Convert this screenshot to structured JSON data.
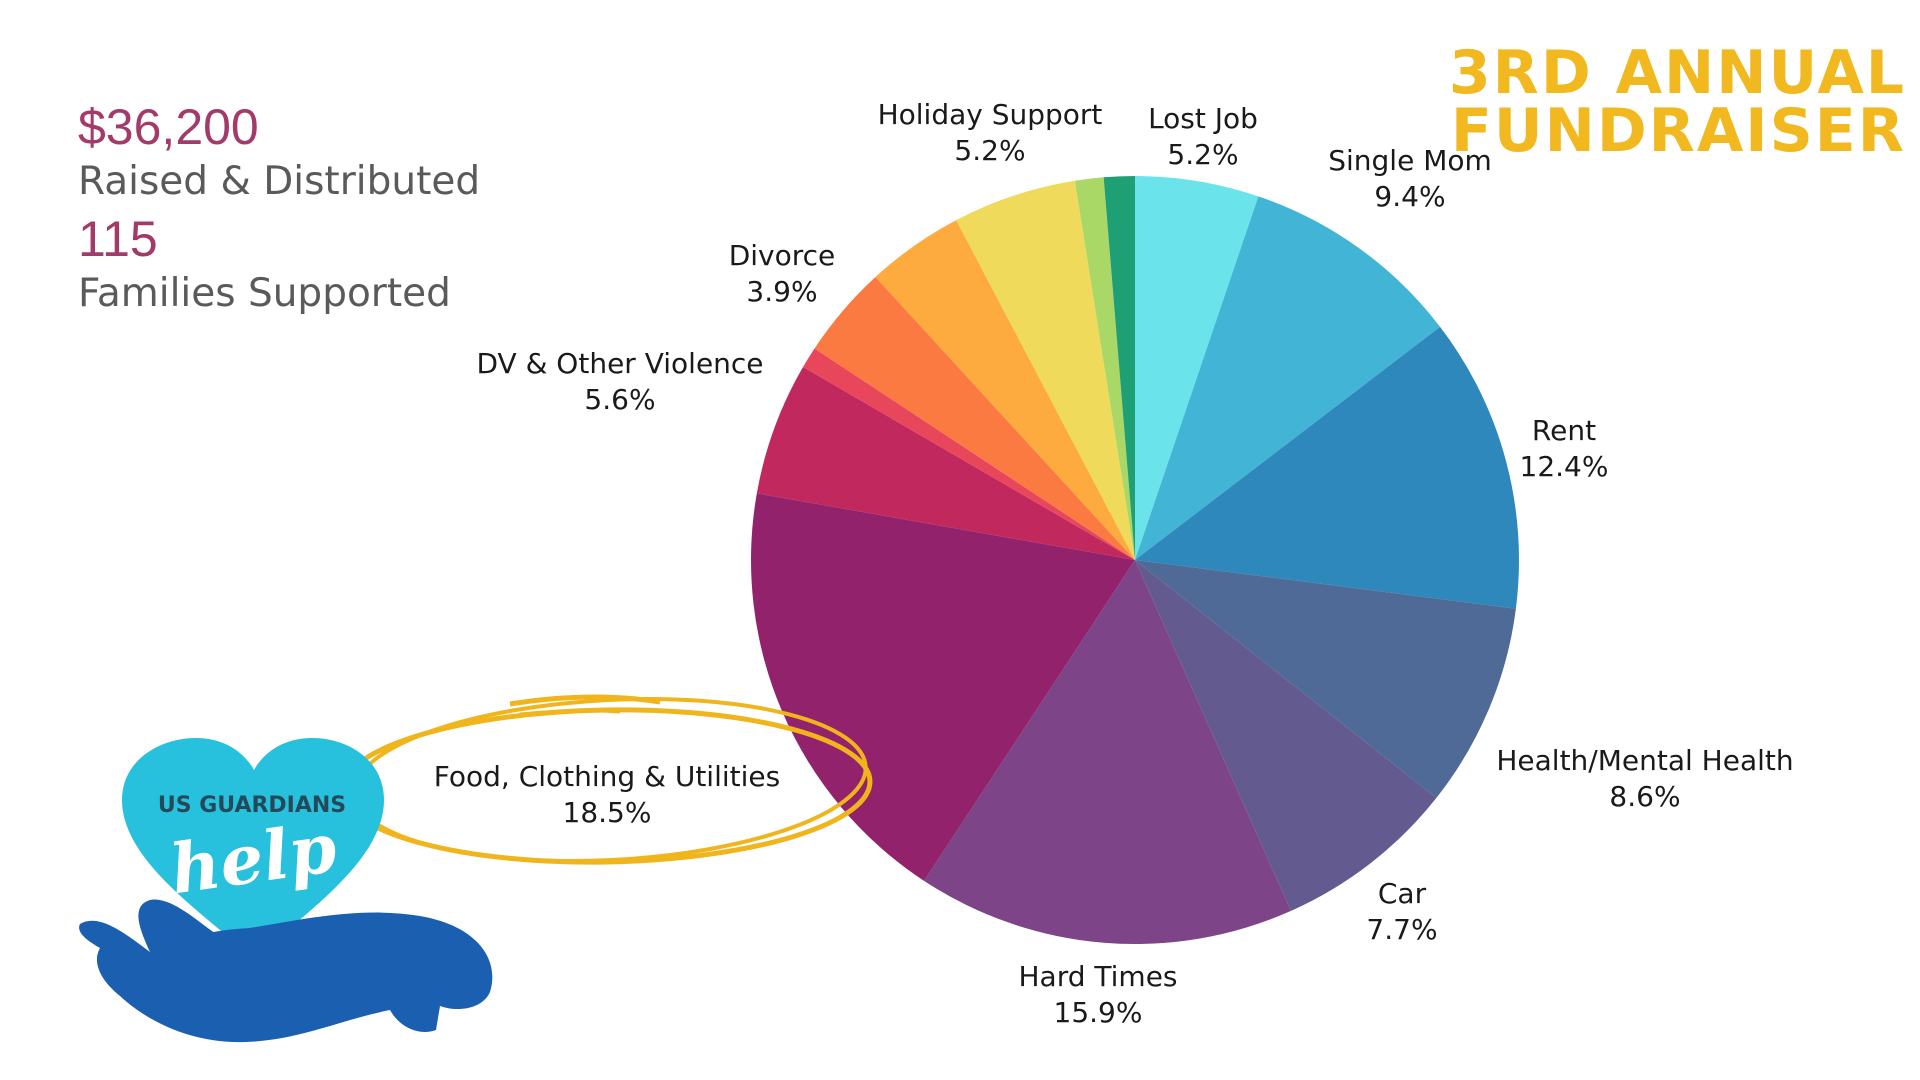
{
  "title": {
    "line1": "3RD ANNUAL",
    "line2": "FUNDRAISER"
  },
  "stats": {
    "raised_value": "$36,200",
    "raised_caption": "Raised & Distributed",
    "families_value": "115",
    "families_caption": "Families Supported"
  },
  "logo": {
    "top_text": "US GUARDIANS",
    "script_text": "help",
    "heart_color": "#27c0dd",
    "hand_color": "#1a5fb0"
  },
  "highlight_color": "#f0b51c",
  "chart_data": {
    "type": "pie",
    "title": "",
    "start": "12 o'clock",
    "direction": "clockwise",
    "slices": [
      {
        "label": "Lost Job",
        "value": 5.2,
        "pct_label": "5.2%",
        "color": "#6ae4ea"
      },
      {
        "label": "Single Mom",
        "value": 9.4,
        "pct_label": "9.4%",
        "color": "#42b5d6"
      },
      {
        "label": "Rent",
        "value": 12.4,
        "pct_label": "12.4%",
        "color": "#2e88bb"
      },
      {
        "label": "Health/Mental Health",
        "value": 8.6,
        "pct_label": "8.6%",
        "color": "#4f6a96"
      },
      {
        "label": "Car",
        "value": 7.7,
        "pct_label": "7.7%",
        "color": "#635a8f"
      },
      {
        "label": "Hard Times",
        "value": 15.9,
        "pct_label": "15.9%",
        "color": "#7d4488"
      },
      {
        "label": "Food, Clothing & Utilities",
        "value": 18.5,
        "pct_label": "18.5%",
        "color": "#93226d"
      },
      {
        "label": "DV & Other Violence",
        "value": 5.6,
        "pct_label": "5.6%",
        "color": "#c0285e"
      },
      {
        "label": "",
        "value": 0.9,
        "pct_label": "",
        "color": "#e8465a"
      },
      {
        "label": "Divorce",
        "value": 3.9,
        "pct_label": "3.9%",
        "color": "#fb7a42"
      },
      {
        "label": "",
        "value": 4.1,
        "pct_label": "",
        "color": "#fdab3e"
      },
      {
        "label": "Holiday Support",
        "value": 5.2,
        "pct_label": "5.2%",
        "color": "#efda5c"
      },
      {
        "label": "",
        "value": 1.2,
        "pct_label": "",
        "color": "#a9d866"
      },
      {
        "label": "",
        "value": 1.3,
        "pct_label": "",
        "color": "#1ea074"
      }
    ]
  }
}
